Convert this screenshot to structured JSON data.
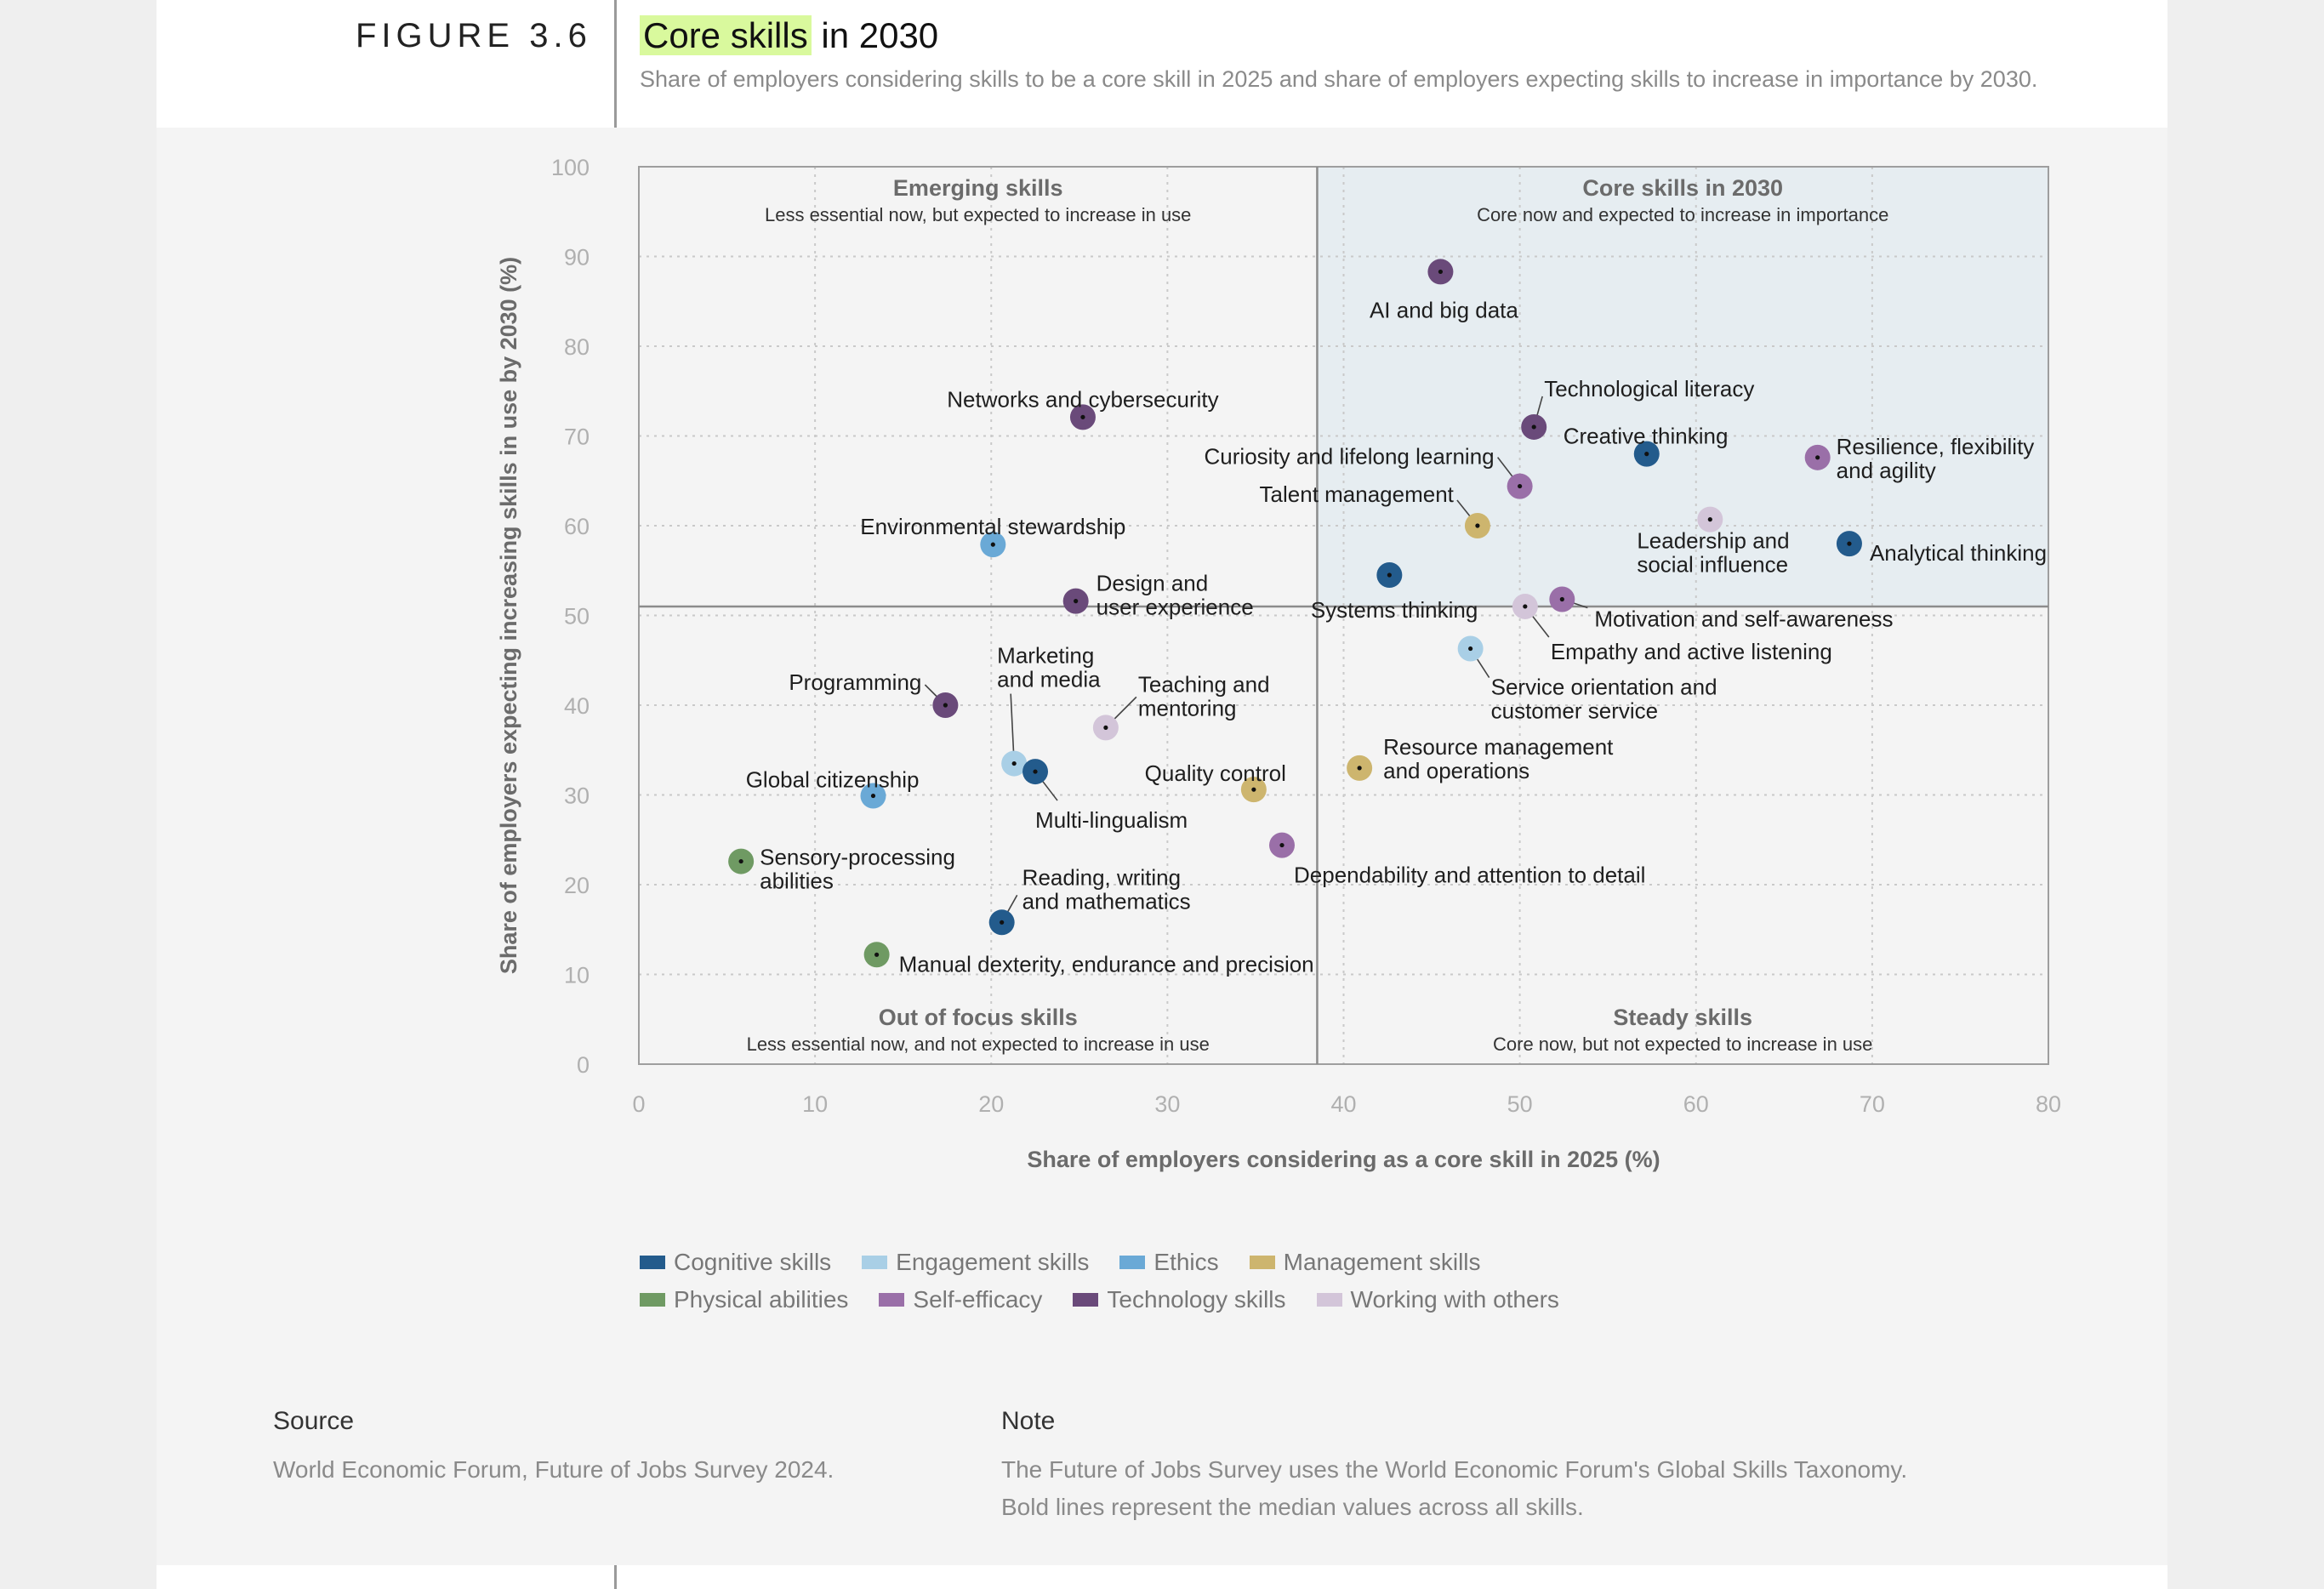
{
  "figure": {
    "label": "FIGURE 3.6",
    "title_highlight": "Core skills",
    "title_rest": " in 2030",
    "subtitle": "Share of employers considering skills to be a core skill in 2025 and share of employers expecting skills to increase in importance by 2030."
  },
  "colors": {
    "cognitive": "#235b8c",
    "engagement": "#a9cfe6",
    "ethics": "#6aa9d6",
    "management": "#cdb56e",
    "physical": "#6f9a63",
    "self_efficacy": "#9a6fa8",
    "technology": "#6a4a7a",
    "working_with_others": "#d3c5d9",
    "core_fill": "#e6edf1",
    "grid": "#c9c9c9"
  },
  "chart_data": {
    "type": "scatter",
    "title": "Core skills in 2030",
    "xlabel": "Share of employers considering as a core skill in 2025 (%)",
    "ylabel": "Share of employers expecting increasing skills in use by 2030 (%)",
    "xlim": [
      0,
      80
    ],
    "ylim": [
      0,
      100
    ],
    "xticks": [
      0,
      10,
      20,
      30,
      40,
      50,
      60,
      70,
      80
    ],
    "yticks": [
      0,
      10,
      20,
      30,
      40,
      50,
      60,
      70,
      80,
      90,
      100
    ],
    "grid": true,
    "median_x": 38.5,
    "median_y": 51,
    "quadrants": [
      {
        "title": "Emerging skills",
        "desc": "Less essential now, but expected to increase in use",
        "position": "top-left"
      },
      {
        "title": "Core skills in 2030",
        "desc": "Core now and expected to increase in importance",
        "position": "top-right"
      },
      {
        "title": "Out of focus skills",
        "desc": "Less essential now, and not expected to increase in use",
        "position": "bottom-left"
      },
      {
        "title": "Steady skills",
        "desc": "Core now, but not expected to increase in use",
        "position": "bottom-right"
      }
    ],
    "points": [
      {
        "label": "AI and big data",
        "x": 45.5,
        "y": 88.3,
        "category": "technology"
      },
      {
        "label": "Technological literacy",
        "x": 50.8,
        "y": 71.0,
        "category": "technology"
      },
      {
        "label": "Creative thinking",
        "x": 57.2,
        "y": 68.0,
        "category": "cognitive"
      },
      {
        "label": "Resilience, flexibility\nand agility",
        "x": 66.9,
        "y": 67.6,
        "category": "self_efficacy"
      },
      {
        "label": "Curiosity and lifelong learning",
        "x": 50.0,
        "y": 64.4,
        "category": "self_efficacy"
      },
      {
        "label": "Talent management",
        "x": 47.6,
        "y": 60.0,
        "category": "management"
      },
      {
        "label": "Leadership and\nsocial influence",
        "x": 60.8,
        "y": 60.7,
        "category": "working_with_others"
      },
      {
        "label": "Analytical thinking",
        "x": 68.7,
        "y": 58.0,
        "category": "cognitive"
      },
      {
        "label": "Systems thinking",
        "x": 42.6,
        "y": 54.5,
        "category": "cognitive"
      },
      {
        "label": "Motivation and self-awareness",
        "x": 52.4,
        "y": 51.8,
        "category": "self_efficacy"
      },
      {
        "label": "Empathy and active listening",
        "x": 50.3,
        "y": 51.0,
        "category": "working_with_others"
      },
      {
        "label": "Service orientation and\ncustomer service",
        "x": 47.2,
        "y": 46.3,
        "category": "engagement"
      },
      {
        "label": "Networks and cybersecurity",
        "x": 25.2,
        "y": 72.1,
        "category": "technology"
      },
      {
        "label": "Environmental stewardship",
        "x": 20.1,
        "y": 57.9,
        "category": "ethics"
      },
      {
        "label": "Design and\nuser experience",
        "x": 24.8,
        "y": 51.6,
        "category": "technology"
      },
      {
        "label": "Programming",
        "x": 17.4,
        "y": 40.0,
        "category": "technology"
      },
      {
        "label": "Marketing\nand media",
        "x": 21.3,
        "y": 33.5,
        "category": "engagement"
      },
      {
        "label": "Teaching and\nmentoring",
        "x": 26.5,
        "y": 37.5,
        "category": "working_with_others"
      },
      {
        "label": "Multi-lingualism",
        "x": 22.5,
        "y": 32.6,
        "category": "cognitive"
      },
      {
        "label": "Global citizenship",
        "x": 13.3,
        "y": 29.9,
        "category": "ethics"
      },
      {
        "label": "Quality control",
        "x": 34.9,
        "y": 30.6,
        "category": "management"
      },
      {
        "label": "Resource management\nand operations",
        "x": 40.9,
        "y": 33.0,
        "category": "management"
      },
      {
        "label": "Dependability and attention to detail",
        "x": 36.5,
        "y": 24.4,
        "category": "self_efficacy"
      },
      {
        "label": "Sensory-processing\nabilities",
        "x": 5.8,
        "y": 22.6,
        "category": "physical"
      },
      {
        "label": "Reading, writing\nand mathematics",
        "x": 20.6,
        "y": 15.8,
        "category": "cognitive"
      },
      {
        "label": "Manual dexterity, endurance and precision",
        "x": 13.5,
        "y": 12.2,
        "category": "physical"
      }
    ],
    "legend": [
      {
        "key": "cognitive",
        "name": "Cognitive skills"
      },
      {
        "key": "engagement",
        "name": "Engagement skills"
      },
      {
        "key": "ethics",
        "name": "Ethics"
      },
      {
        "key": "management",
        "name": "Management skills"
      },
      {
        "key": "physical",
        "name": "Physical abilities"
      },
      {
        "key": "self_efficacy",
        "name": "Self-efficacy"
      },
      {
        "key": "technology",
        "name": "Technology skills"
      },
      {
        "key": "working_with_others",
        "name": "Working with others"
      }
    ]
  },
  "footer": {
    "source_heading": "Source",
    "source_text": "World Economic Forum, Future of Jobs Survey 2024.",
    "note_heading": "Note",
    "note_lines": [
      "The Future of Jobs Survey uses the World Economic Forum's Global Skills Taxonomy.",
      "Bold lines represent the median values across all skills."
    ]
  }
}
